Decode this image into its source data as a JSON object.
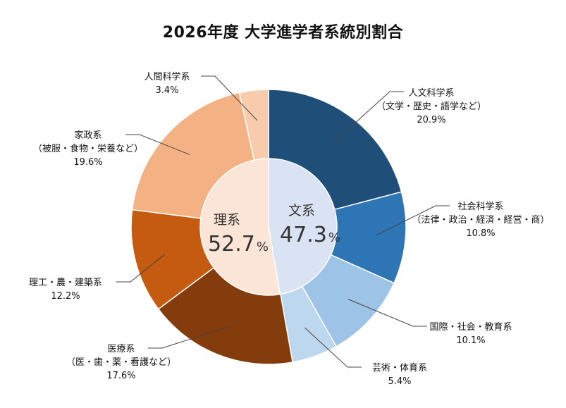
{
  "chart_data": {
    "type": "pie",
    "title": "2026年度 大学進学者系統別割合",
    "outer_series": [
      {
        "name": "人文科学系",
        "sub": "（文学・歴史・語学など）",
        "value": 20.9,
        "display": "20.9%",
        "color": "#1f4e79",
        "group": "文系"
      },
      {
        "name": "社会科学系",
        "sub": "（法律・政治・経済・経営・商）",
        "value": 10.8,
        "display": "10.8%",
        "color": "#2e75b6",
        "group": "文系"
      },
      {
        "name": "国際・社会・教育系",
        "sub": "",
        "value": 10.1,
        "display": "10.1%",
        "color": "#9dc3e6",
        "group": "文系"
      },
      {
        "name": "芸術・体育系",
        "sub": "",
        "value": 5.4,
        "display": "5.4%",
        "color": "#bdd7ee",
        "group": "文系"
      },
      {
        "name": "医療系",
        "sub": "（医・歯・薬・看護など）",
        "value": 17.6,
        "display": "17.6%",
        "color": "#843c0c",
        "group": "理系"
      },
      {
        "name": "理工・農・建築系",
        "sub": "",
        "value": 12.2,
        "display": "12.2%",
        "color": "#c55a11",
        "group": "理系"
      },
      {
        "name": "家政系",
        "sub": "（被服・食物・栄養など）",
        "value": 19.6,
        "display": "19.6%",
        "color": "#f4b183",
        "group": "理系"
      },
      {
        "name": "人間科学系",
        "sub": "",
        "value": 3.4,
        "display": "3.4%",
        "color": "#f8cbad",
        "group": "理系"
      }
    ],
    "inner_series": [
      {
        "name": "文系",
        "value": 47.3,
        "value_text": "47.3",
        "unit": "%",
        "color": "#dae3f3"
      },
      {
        "name": "理系",
        "value": 52.7,
        "value_text": "52.7",
        "unit": "%",
        "color": "#fbe5d6"
      }
    ]
  }
}
